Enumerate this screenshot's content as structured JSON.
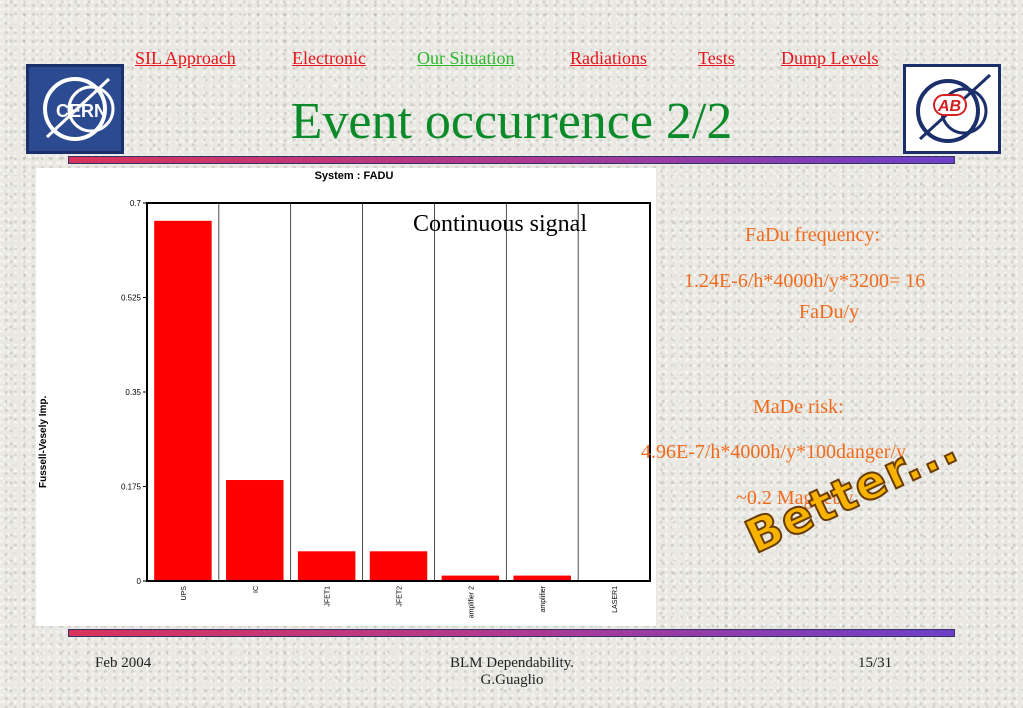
{
  "nav": {
    "items": [
      {
        "label": "SIL Approach"
      },
      {
        "label": "Electronic"
      },
      {
        "label": "Our Situation"
      },
      {
        "label": "Radiations"
      },
      {
        "label": "Tests"
      },
      {
        "label": "Dump Levels"
      }
    ],
    "active_color": "#2bb82b",
    "link_color": "#e8131b"
  },
  "logos": {
    "left": {
      "text": "CERN",
      "icon": "cern-logo"
    },
    "right": {
      "text": "AB",
      "icon": "ab-logo"
    }
  },
  "title": "Event occurrence 2/2",
  "chart_data": {
    "type": "bar",
    "title": "System : FADU",
    "ylabel": "Fussell-Vesely Imp.",
    "xlabel": "",
    "annotation": "Continuous signal",
    "ylim": [
      0,
      0.7
    ],
    "yticks": [
      0,
      0.175,
      0.35,
      0.525,
      0.7
    ],
    "ytick_labels": [
      "0",
      "0.175",
      "0.35",
      "0.525",
      "0.7"
    ],
    "categories": [
      "UPS",
      "IC",
      "JFET1",
      "JFET2",
      "amplifier 2",
      "amplifier",
      "LASER1"
    ],
    "values": [
      0.667,
      0.187,
      0.055,
      0.055,
      0.01,
      0.01,
      0
    ],
    "grid": true,
    "bar_color": "#ff0000"
  },
  "info": {
    "fadu_heading": "FaDu  frequency:",
    "fadu_formula": "1.24E-6/h*4000h/y*3200= 16",
    "fadu_result": "FaDu/y",
    "made_heading": "MaDe risk:",
    "made_formula": "4.96E-7/h*4000h/y*100danger/y",
    "made_result": "~0.2 Magnet/y",
    "text_color": "#f26b1d"
  },
  "better": "Better...",
  "footer": {
    "date": "Feb 2004",
    "center_line1": "BLM Dependability.",
    "center_line2": "G.Guaglio",
    "page": "15/31"
  }
}
